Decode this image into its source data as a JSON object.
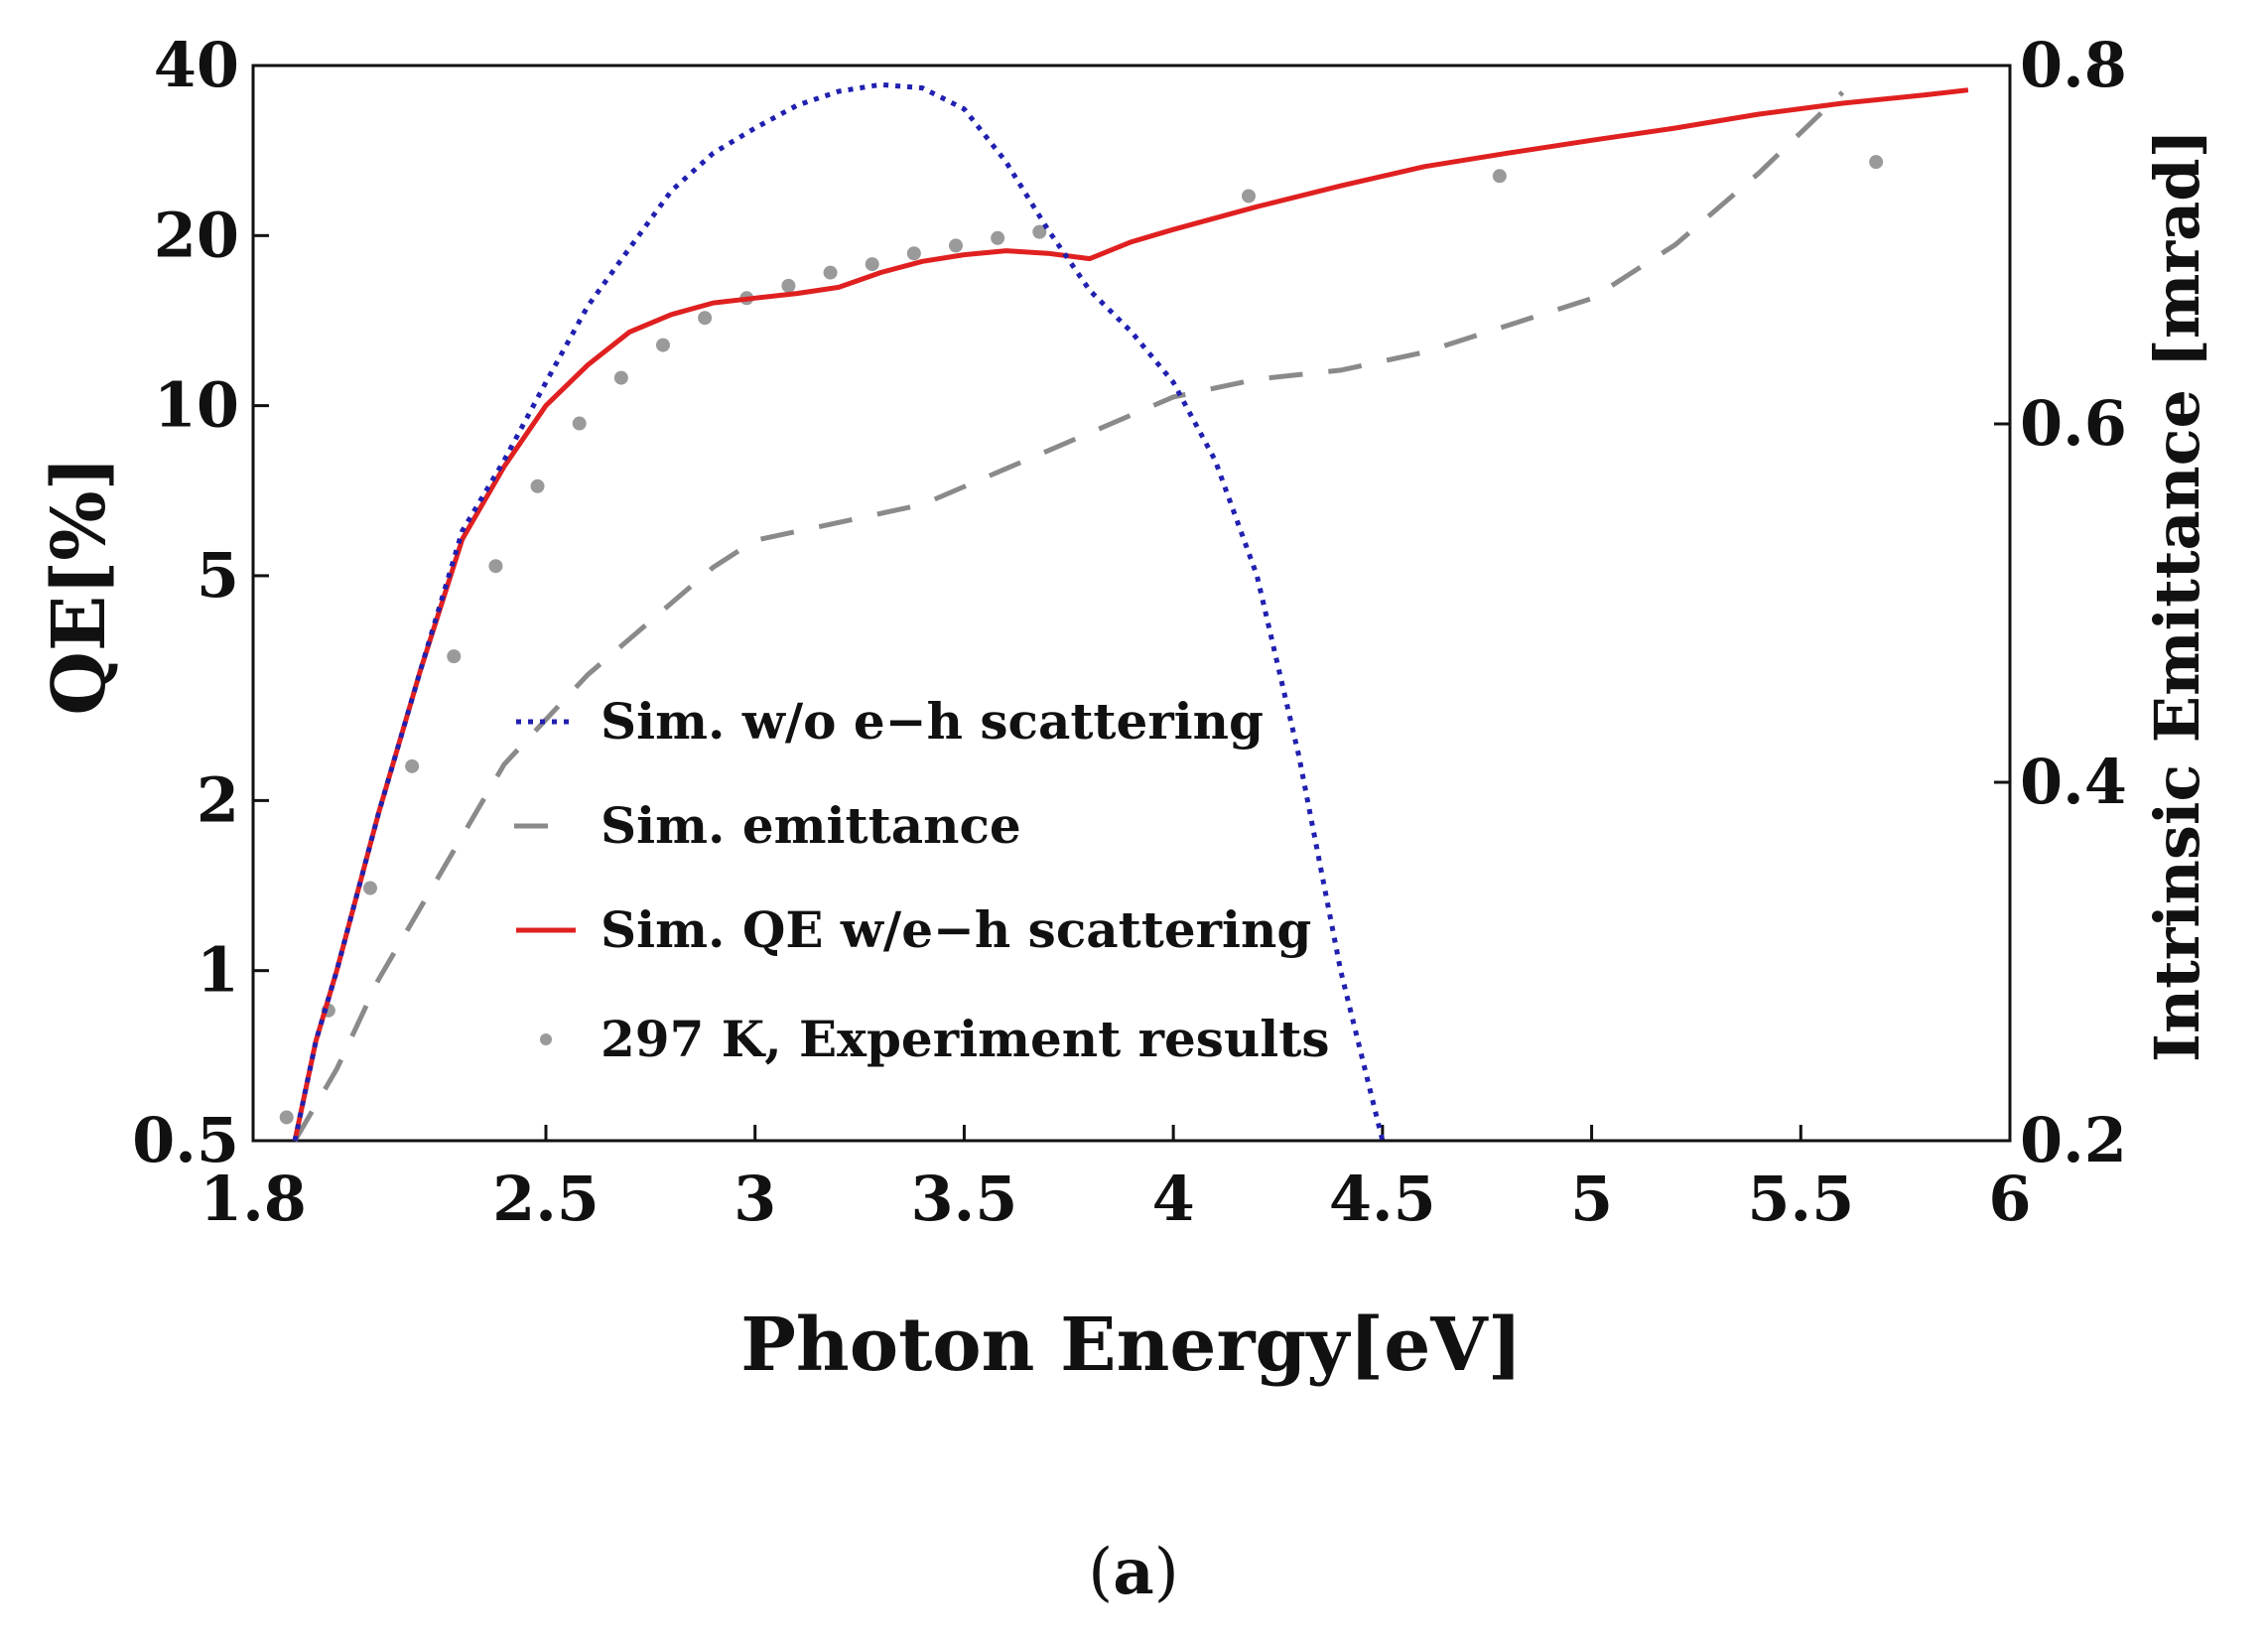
{
  "chart_data": {
    "type": "line",
    "title": "",
    "xlabel": "Photon Energy[eV]",
    "ylabel_left": "QE[%]",
    "ylabel_right": "Intrinsic Emittance [mrad]",
    "xlim": [
      1.8,
      6
    ],
    "ylim_left": [
      0.5,
      40
    ],
    "yscale_left": "log",
    "ylim_right": [
      0.2,
      0.8
    ],
    "x_ticks": [
      "1.8",
      "2.5",
      "3",
      "3.5",
      "4",
      "4.5",
      "5",
      "5.5",
      "6"
    ],
    "x_tick_values": [
      1.8,
      2.5,
      3,
      3.5,
      4,
      4.5,
      5,
      5.5,
      6
    ],
    "y_left_ticks": [
      "0.5",
      "1",
      "2",
      "5",
      "10",
      "20",
      "40"
    ],
    "y_left_tick_values": [
      0.5,
      1,
      2,
      5,
      10,
      20,
      40
    ],
    "y_right_ticks": [
      "0.2",
      "0.4",
      "0.6",
      "0.8"
    ],
    "y_right_tick_values": [
      0.2,
      0.4,
      0.6,
      0.8
    ],
    "grid": false,
    "legend_position": "center-left",
    "series": [
      {
        "name": "Sim. w/o e−h scattering",
        "axis": "left",
        "style": "dotted",
        "color": "#2020b0",
        "x": [
          1.9,
          1.95,
          2.0,
          2.1,
          2.2,
          2.3,
          2.4,
          2.5,
          2.6,
          2.7,
          2.8,
          2.9,
          3.0,
          3.1,
          3.2,
          3.3,
          3.4,
          3.5,
          3.6,
          3.7,
          3.8,
          3.9,
          4.0,
          4.1,
          4.2,
          4.3,
          4.4,
          4.5
        ],
        "values": [
          0.5,
          0.75,
          1.0,
          1.9,
          3.4,
          6.0,
          8.0,
          11.0,
          15.0,
          19.0,
          24.0,
          28.0,
          31.0,
          34.0,
          36.0,
          37.0,
          36.5,
          33.5,
          27.0,
          20.5,
          16.0,
          13.5,
          11.0,
          8.0,
          5.0,
          2.4,
          1.0,
          0.5
        ]
      },
      {
        "name": "Sim. emittance",
        "axis": "right",
        "style": "dashed",
        "color": "#8a8a8a",
        "x": [
          1.9,
          2.0,
          2.1,
          2.2,
          2.3,
          2.4,
          2.5,
          2.6,
          2.7,
          2.8,
          2.9,
          3.0,
          3.2,
          3.4,
          3.6,
          3.8,
          4.0,
          4.2,
          4.4,
          4.6,
          4.8,
          5.0,
          5.2,
          5.4,
          5.6
        ],
        "values": [
          0.2,
          0.24,
          0.29,
          0.33,
          0.37,
          0.41,
          0.435,
          0.46,
          0.48,
          0.5,
          0.52,
          0.535,
          0.545,
          0.555,
          0.575,
          0.595,
          0.615,
          0.625,
          0.63,
          0.64,
          0.655,
          0.67,
          0.7,
          0.74,
          0.785
        ]
      },
      {
        "name": "Sim. QE w/e−h scattering",
        "axis": "left",
        "style": "solid",
        "color": "#e02020",
        "x": [
          1.9,
          1.95,
          2.0,
          2.1,
          2.2,
          2.3,
          2.4,
          2.5,
          2.6,
          2.7,
          2.8,
          2.9,
          3.0,
          3.1,
          3.2,
          3.3,
          3.4,
          3.5,
          3.6,
          3.7,
          3.8,
          3.9,
          4.0,
          4.2,
          4.4,
          4.6,
          4.8,
          5.0,
          5.2,
          5.4,
          5.6,
          5.8,
          5.9
        ],
        "values": [
          0.5,
          0.75,
          1.0,
          1.9,
          3.4,
          5.8,
          7.8,
          10.0,
          11.8,
          13.5,
          14.5,
          15.2,
          15.5,
          15.8,
          16.2,
          17.2,
          18.0,
          18.5,
          18.8,
          18.6,
          18.2,
          19.5,
          20.5,
          22.5,
          24.5,
          26.5,
          28.0,
          29.5,
          31.0,
          32.8,
          34.3,
          35.5,
          36.2
        ]
      },
      {
        "name": "297 K, Experiment results",
        "axis": "left",
        "style": "markers",
        "color": "#9a9a9a",
        "x": [
          1.88,
          1.98,
          2.08,
          2.18,
          2.28,
          2.38,
          2.48,
          2.58,
          2.68,
          2.78,
          2.88,
          2.98,
          3.08,
          3.18,
          3.28,
          3.38,
          3.48,
          3.58,
          3.68,
          4.18,
          4.78,
          5.68
        ],
        "values": [
          0.55,
          0.85,
          1.4,
          2.3,
          3.6,
          5.2,
          7.2,
          9.3,
          11.2,
          12.8,
          14.3,
          15.5,
          16.3,
          17.2,
          17.8,
          18.6,
          19.2,
          19.8,
          20.3,
          23.5,
          25.5,
          27.0
        ]
      }
    ]
  },
  "caption": {
    "open": "(",
    "label": "a",
    "close": ")"
  }
}
